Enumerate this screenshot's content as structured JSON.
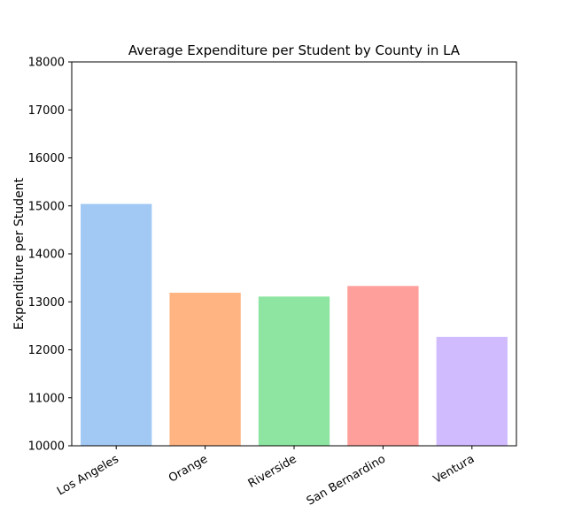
{
  "chart_data": {
    "type": "bar",
    "title": "Average Expenditure per Student by County in LA",
    "xlabel": "",
    "ylabel": "Expenditure per Student",
    "categories": [
      "Los Angeles",
      "Orange",
      "Riverside",
      "San Bernardino",
      "Ventura"
    ],
    "values": [
      15040,
      13190,
      13110,
      13330,
      12270
    ],
    "ylim": [
      10000,
      18000
    ],
    "yticks": [
      10000,
      11000,
      12000,
      13000,
      14000,
      15000,
      16000,
      17000,
      18000
    ],
    "colors": [
      "#a1c9f4",
      "#ffb482",
      "#8de5a1",
      "#ff9f9b",
      "#d0bbff"
    ],
    "grid": false,
    "legend": "none"
  }
}
